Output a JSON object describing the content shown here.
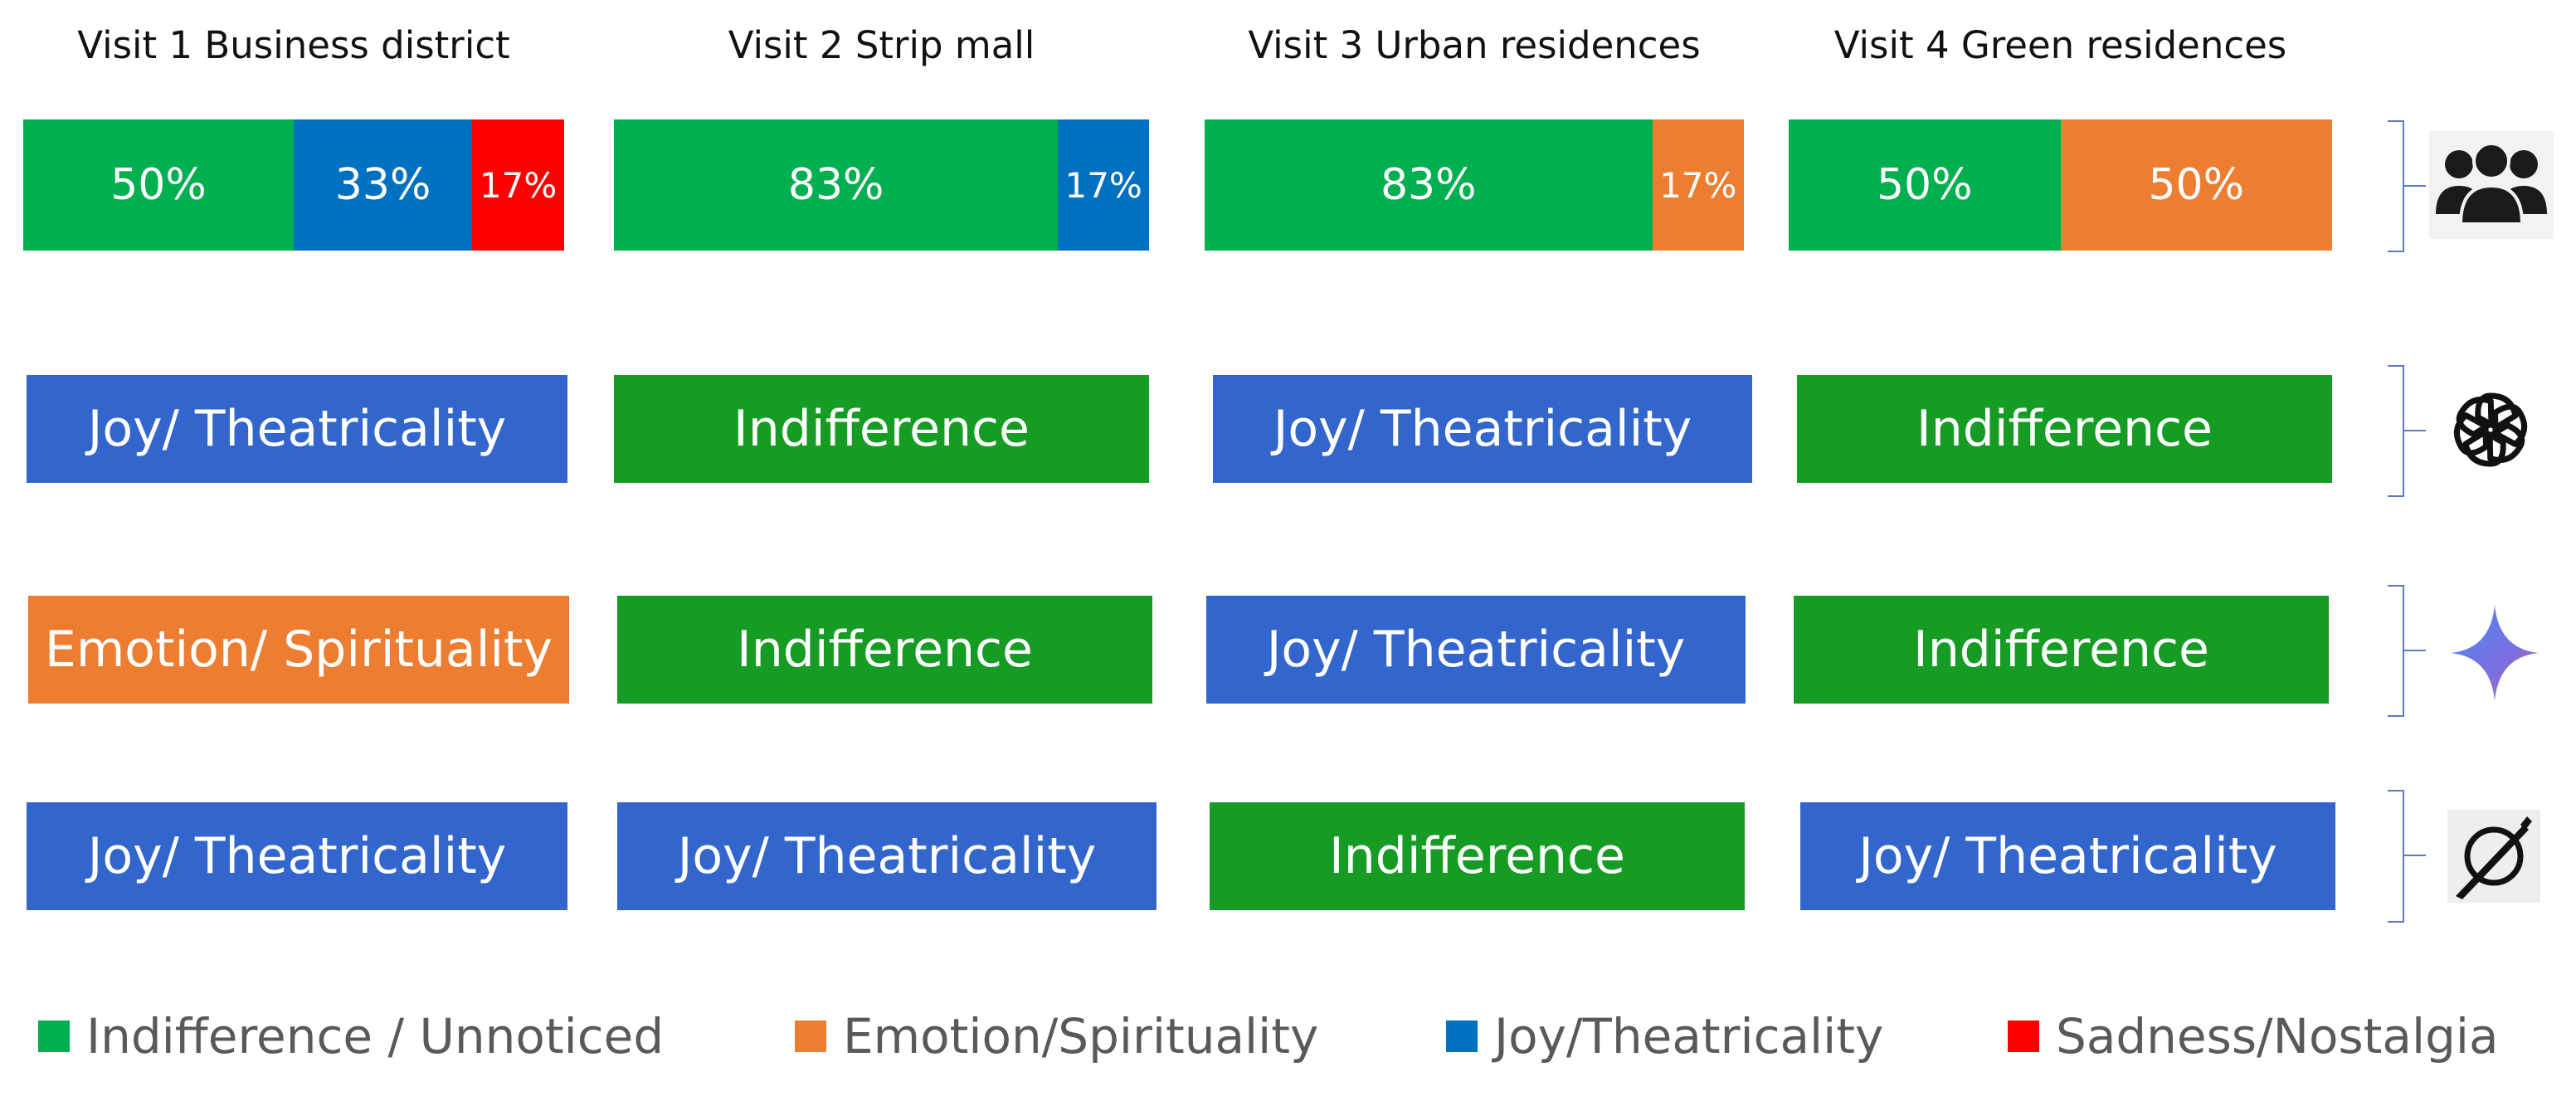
{
  "chart_data": {
    "type": "bar",
    "title": "",
    "visits": [
      "Visit 1 Business district",
      "Visit 2 Strip mall",
      "Visit 3 Urban residences",
      "Visit 4 Green residences"
    ],
    "human_distribution": [
      [
        {
          "category": "Indifference / Unnoticed",
          "value": 50,
          "label": "50%"
        },
        {
          "category": "Joy/Theatricality",
          "value": 33,
          "label": "33%"
        },
        {
          "category": "Sadness/Nostalgia",
          "value": 17,
          "label": "17%"
        }
      ],
      [
        {
          "category": "Indifference / Unnoticed",
          "value": 83,
          "label": "83%"
        },
        {
          "category": "Joy/Theatricality",
          "value": 17,
          "label": "17%"
        }
      ],
      [
        {
          "category": "Indifference / Unnoticed",
          "value": 83,
          "label": "83%"
        },
        {
          "category": "Emotion/Spirituality",
          "value": 17,
          "label": "17%"
        }
      ],
      [
        {
          "category": "Indifference / Unnoticed",
          "value": 50,
          "label": "50%"
        },
        {
          "category": "Emotion/Spirituality",
          "value": 50,
          "label": "50%"
        }
      ]
    ],
    "model_predictions": [
      {
        "model_icon": "openai-logo-icon",
        "labels": [
          "Joy/ Theatricality",
          "Indifference",
          "Joy/ Theatricality",
          "Indifference"
        ]
      },
      {
        "model_icon": "gemini-sparkle-icon",
        "labels": [
          "Emotion/ Spirituality",
          "Indifference",
          "Joy/ Theatricality",
          "Indifference"
        ]
      },
      {
        "model_icon": "perplexity-logo-icon",
        "labels": [
          "Joy/ Theatricality",
          "Joy/ Theatricality",
          "Indifference",
          "Joy/ Theatricality"
        ]
      }
    ],
    "row_icons": [
      "people-group-icon",
      "openai-logo-icon",
      "gemini-sparkle-icon",
      "perplexity-logo-icon"
    ],
    "legend": [
      {
        "label": "Indifference / Unnoticed",
        "color": "#00b050"
      },
      {
        "label": "Emotion/Spirituality",
        "color": "#ed7d31"
      },
      {
        "label": "Joy/Theatricality",
        "color": "#0070c0"
      },
      {
        "label": "Sadness/Nostalgia",
        "color": "#ff0000"
      }
    ],
    "prediction_colors": {
      "Joy/ Theatricality": "#3366cc",
      "Indifference": "#169b25",
      "Emotion/ Spirituality": "#ed7d31"
    }
  }
}
